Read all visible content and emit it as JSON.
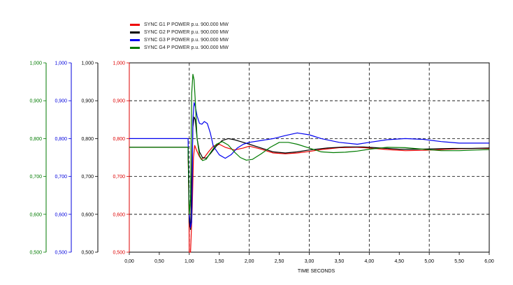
{
  "chart_data": {
    "type": "line",
    "xlabel": "TIME SECONDS",
    "xlim": [
      0,
      6
    ],
    "x_ticks": [
      "0,00",
      "0,50",
      "1,00",
      "1,50",
      "2,00",
      "2,50",
      "3,00",
      "3,50",
      "4,00",
      "4,50",
      "5,00",
      "5,50",
      "6,00"
    ],
    "grid": true,
    "legend_position": "top",
    "y_axes": [
      {
        "color": "#007a00",
        "range": [
          0.5,
          1.0
        ],
        "ticks": [
          "0,500",
          "0,600",
          "0,700",
          "0,800",
          "0,900",
          "1,000"
        ]
      },
      {
        "color": "#0000dd",
        "range": [
          0.5,
          1.0
        ],
        "ticks": [
          "0,500",
          "0,600",
          "0,700",
          "0,800",
          "0,900",
          "1,000"
        ]
      },
      {
        "color": "#000000",
        "range": [
          0.5,
          1.0
        ],
        "ticks": [
          "0,500",
          "0,600",
          "0,700",
          "0,800",
          "0,900",
          "1,000"
        ]
      },
      {
        "color": "#dd0000",
        "range": [
          0.5,
          1.0
        ],
        "ticks": [
          "0,500",
          "0,600",
          "0,700",
          "0,800",
          "0,900",
          "1,000"
        ]
      }
    ],
    "series": [
      {
        "name": "SYNC G1   P POWER    p.u. 900.000 MW",
        "color": "#ee0000",
        "x": [
          0,
          0.98,
          0.995,
          1.0,
          1.02,
          1.05,
          1.07,
          1.09,
          1.12,
          1.16,
          1.2,
          1.25,
          1.32,
          1.4,
          1.5,
          1.6,
          1.75,
          1.9,
          2.0,
          2.2,
          2.4,
          2.6,
          2.8,
          3.0,
          3.2,
          3.5,
          3.8,
          4.0,
          4.3,
          4.6,
          4.9,
          5.2,
          5.5,
          5.8,
          6.0
        ],
        "y": [
          0.777,
          0.777,
          0.6,
          0.5,
          0.5,
          0.62,
          0.75,
          0.782,
          0.77,
          0.755,
          0.745,
          0.75,
          0.765,
          0.78,
          0.785,
          0.777,
          0.77,
          0.775,
          0.78,
          0.772,
          0.762,
          0.76,
          0.762,
          0.766,
          0.771,
          0.776,
          0.777,
          0.775,
          0.771,
          0.768,
          0.769,
          0.771,
          0.773,
          0.774,
          0.774
        ]
      },
      {
        "name": "SYNC G2   P POWER    p.u. 900.000 MW",
        "color": "#000000",
        "x": [
          0,
          0.98,
          1.0,
          1.02,
          1.04,
          1.06,
          1.08,
          1.1,
          1.13,
          1.17,
          1.22,
          1.28,
          1.35,
          1.45,
          1.55,
          1.65,
          1.75,
          1.9,
          2.0,
          2.2,
          2.4,
          2.6,
          2.8,
          3.0,
          3.3,
          3.6,
          3.9,
          4.2,
          4.5,
          4.8,
          5.1,
          5.4,
          5.7,
          6.0
        ],
        "y": [
          0.777,
          0.777,
          0.58,
          0.56,
          0.7,
          0.83,
          0.857,
          0.85,
          0.8,
          0.765,
          0.75,
          0.748,
          0.76,
          0.78,
          0.795,
          0.8,
          0.797,
          0.79,
          0.785,
          0.775,
          0.765,
          0.762,
          0.765,
          0.77,
          0.775,
          0.778,
          0.778,
          0.775,
          0.772,
          0.772,
          0.773,
          0.774,
          0.774,
          0.775
        ]
      },
      {
        "name": "SYNC G3   P POWER    p.u. 900.000 MW",
        "color": "#0000ee",
        "x": [
          0,
          0.98,
          1.0,
          1.02,
          1.04,
          1.06,
          1.08,
          1.1,
          1.13,
          1.17,
          1.21,
          1.25,
          1.3,
          1.35,
          1.4,
          1.5,
          1.6,
          1.7,
          1.8,
          1.9,
          2.0,
          2.2,
          2.4,
          2.6,
          2.8,
          3.0,
          3.2,
          3.5,
          3.8,
          4.0,
          4.3,
          4.6,
          4.9,
          5.2,
          5.5,
          5.8,
          6.0
        ],
        "y": [
          0.8,
          0.8,
          0.6,
          0.565,
          0.58,
          0.85,
          0.895,
          0.885,
          0.86,
          0.84,
          0.838,
          0.845,
          0.84,
          0.815,
          0.78,
          0.757,
          0.748,
          0.758,
          0.775,
          0.785,
          0.79,
          0.795,
          0.8,
          0.808,
          0.815,
          0.81,
          0.8,
          0.79,
          0.785,
          0.79,
          0.797,
          0.8,
          0.798,
          0.792,
          0.788,
          0.788,
          0.788
        ]
      },
      {
        "name": "SYNC G4   P POWER    p.u. 900.000 MW",
        "color": "#007a00",
        "x": [
          0,
          0.98,
          1.0,
          1.02,
          1.04,
          1.06,
          1.08,
          1.1,
          1.13,
          1.17,
          1.22,
          1.28,
          1.35,
          1.45,
          1.55,
          1.65,
          1.75,
          1.85,
          1.95,
          2.05,
          2.2,
          2.35,
          2.5,
          2.65,
          2.8,
          3.0,
          3.2,
          3.4,
          3.6,
          3.8,
          4.0,
          4.3,
          4.6,
          4.9,
          5.2,
          5.5,
          5.8,
          6.0
        ],
        "y": [
          0.777,
          0.777,
          0.6,
          0.64,
          0.92,
          0.97,
          0.955,
          0.9,
          0.8,
          0.755,
          0.742,
          0.745,
          0.762,
          0.785,
          0.792,
          0.783,
          0.765,
          0.75,
          0.743,
          0.745,
          0.76,
          0.777,
          0.79,
          0.79,
          0.785,
          0.775,
          0.765,
          0.763,
          0.764,
          0.767,
          0.772,
          0.777,
          0.776,
          0.772,
          0.768,
          0.768,
          0.77,
          0.771
        ]
      }
    ]
  }
}
